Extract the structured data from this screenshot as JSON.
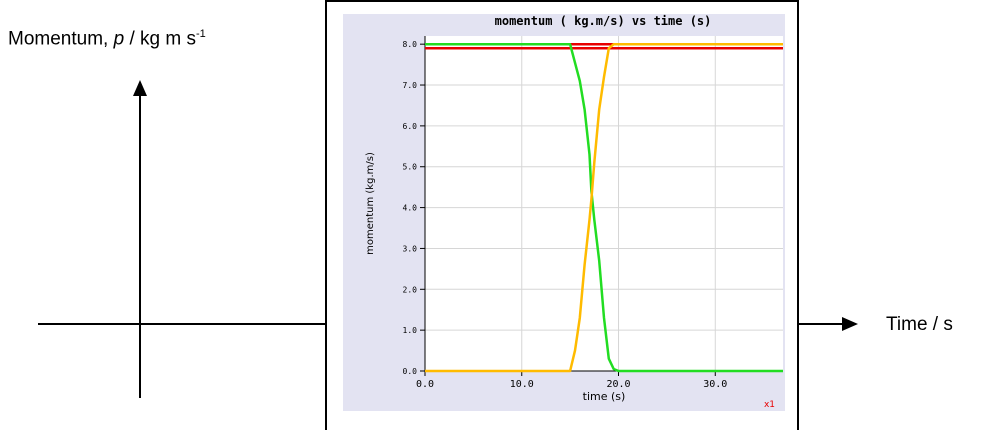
{
  "outer_sketch": {
    "y_label_prefix": "Momentum, ",
    "y_label_symbol": "p",
    "y_label_unit": " / kg m s",
    "y_label_exp": "-1",
    "x_label": "Time / s"
  },
  "chart_data": {
    "type": "line",
    "title": "momentum ( kg.m/s) vs time (s)",
    "xlabel": "time (s)",
    "ylabel": "momentum (kg.m/s)",
    "xlim": [
      0,
      37
    ],
    "ylim": [
      0,
      8.2
    ],
    "x_ticks": [
      "0.0",
      "10.0",
      "20.0",
      "30.0"
    ],
    "y_ticks": [
      "0.0",
      "1.0",
      "2.0",
      "3.0",
      "4.0",
      "5.0",
      "6.0",
      "7.0",
      "8.0"
    ],
    "grid": true,
    "corner_label": "x1",
    "series": [
      {
        "color": "#e80000",
        "x": [
          0,
          37
        ],
        "y": [
          8.0,
          8.0
        ]
      },
      {
        "color": "#e80000",
        "x": [
          0,
          37
        ],
        "y": [
          7.9,
          7.9
        ]
      },
      {
        "color": "#22dd22",
        "x": [
          0,
          15,
          16,
          16.5,
          17,
          17.2,
          17.5,
          18,
          18.5,
          19,
          19.5,
          20,
          37
        ],
        "y": [
          8.0,
          8.0,
          7.1,
          6.4,
          5.3,
          4.4,
          3.7,
          2.7,
          1.3,
          0.3,
          0.05,
          0.0,
          0.0
        ]
      },
      {
        "color": "#ffbb00",
        "x": [
          0,
          15,
          15.5,
          16,
          16.5,
          17,
          17.2,
          17.5,
          18,
          18.5,
          19,
          19.5,
          37
        ],
        "y": [
          0.0,
          0.0,
          0.5,
          1.3,
          2.6,
          3.7,
          4.2,
          5.1,
          6.4,
          7.2,
          7.9,
          8.0,
          8.0
        ]
      }
    ]
  }
}
